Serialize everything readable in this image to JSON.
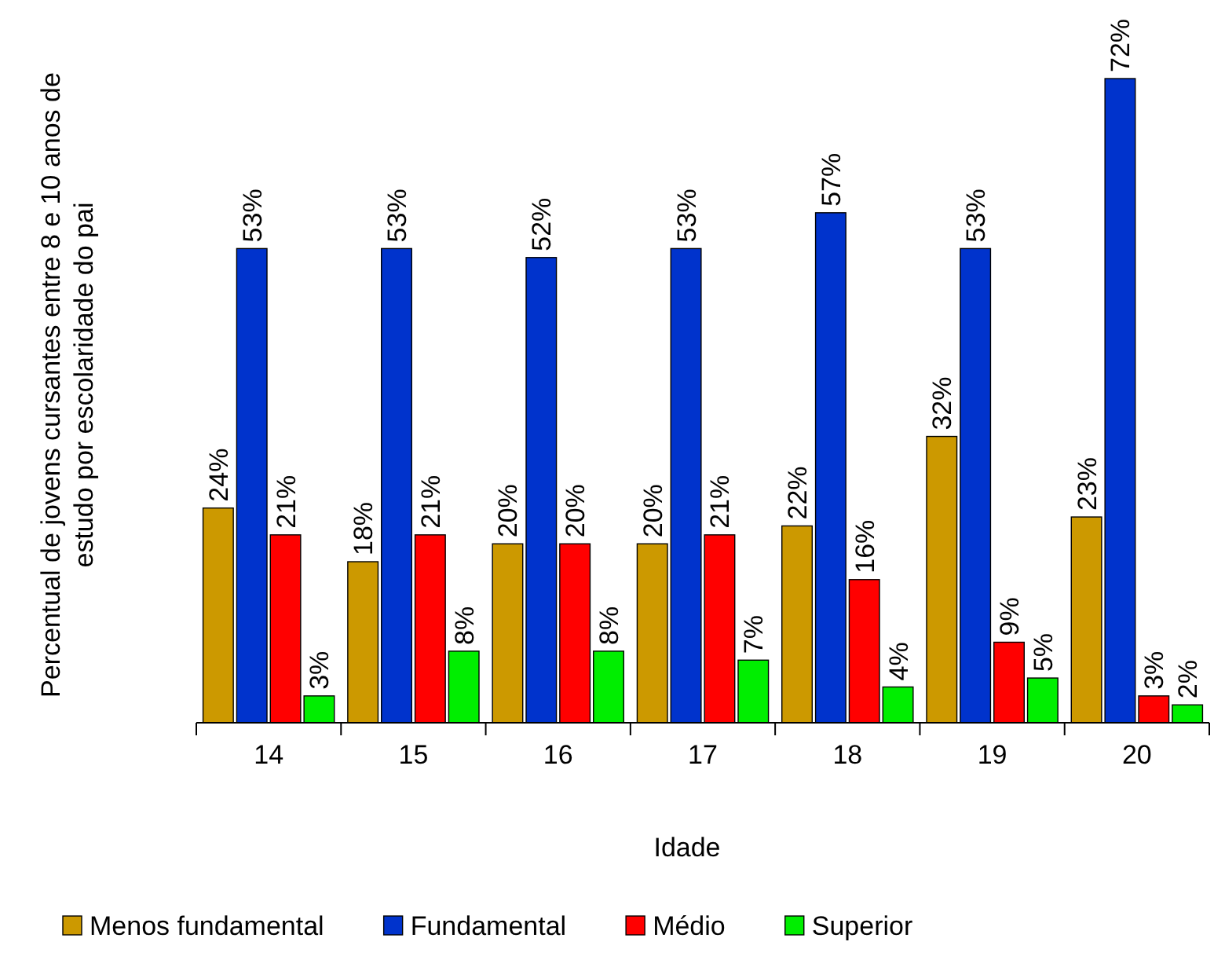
{
  "chart_data": {
    "type": "bar",
    "xlabel": "Idade",
    "ylabel": "Percentual de jovens cursantes entre 8 e 10 anos de estudo por escolaridade do pai",
    "categories": [
      "14",
      "15",
      "16",
      "17",
      "18",
      "19",
      "20"
    ],
    "series": [
      {
        "name": "Menos fundamental",
        "color": "#cc9900",
        "values": [
          24,
          18,
          20,
          20,
          22,
          32,
          23
        ],
        "value_labels": [
          "24%",
          "18%",
          "20%",
          "20%",
          "22%",
          "32%",
          "23%"
        ]
      },
      {
        "name": "Fundamental",
        "color": "#0033cc",
        "values": [
          53,
          53,
          52,
          53,
          57,
          53,
          72
        ],
        "value_labels": [
          "53%",
          "53%",
          "52%",
          "53%",
          "57%",
          "53%",
          "72%"
        ]
      },
      {
        "name": "Médio",
        "color": "#ff0000",
        "values": [
          21,
          21,
          20,
          21,
          16,
          9,
          3
        ],
        "value_labels": [
          "21%",
          "21%",
          "20%",
          "21%",
          "16%",
          "9%",
          "3%"
        ]
      },
      {
        "name": "Superior",
        "color": "#00ee00",
        "values": [
          3,
          8,
          8,
          7,
          4,
          5,
          2
        ],
        "value_labels": [
          "3%",
          "8%",
          "8%",
          "7%",
          "4%",
          "5%",
          "2%"
        ]
      }
    ],
    "legend": "bottom"
  }
}
